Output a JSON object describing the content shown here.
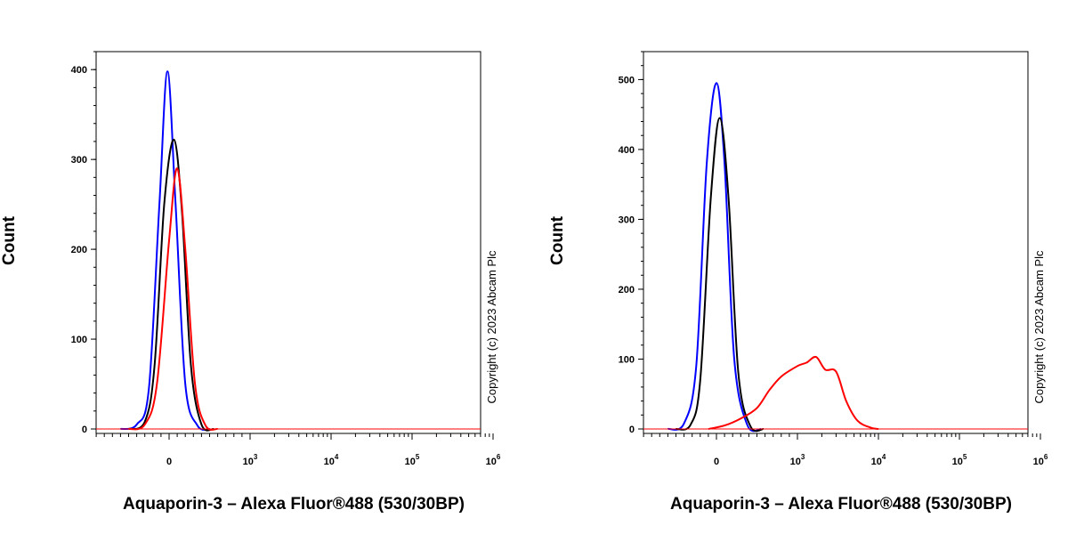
{
  "chart_data": [
    {
      "type": "line",
      "ylabel": "Count",
      "xlabel": "Aquaporin-3 – Alexa Fluor®488 (530/30BP)",
      "copyright": "Copyright (c) 2023 Abcam Plc",
      "ylim": [
        0,
        420
      ],
      "yticks": [
        "0",
        "100",
        "200",
        "300",
        "400"
      ],
      "xscale": "biexponential",
      "xticks": [
        {
          "base": "0",
          "exp": ""
        },
        {
          "base": "10",
          "exp": "3"
        },
        {
          "base": "10",
          "exp": "4"
        },
        {
          "base": "10",
          "exp": "5"
        },
        {
          "base": "10",
          "exp": "6"
        }
      ],
      "series": [
        {
          "color": "#0000ff",
          "points": [
            [
              -600,
              0
            ],
            [
              -400,
              5
            ],
            [
              -250,
              45
            ],
            [
              -120,
              250
            ],
            [
              -20,
              398
            ],
            [
              80,
              250
            ],
            [
              200,
              50
            ],
            [
              350,
              4
            ],
            [
              500,
              0
            ]
          ]
        },
        {
          "color": "#000000",
          "points": [
            [
              -500,
              0
            ],
            [
              -300,
              8
            ],
            [
              -180,
              70
            ],
            [
              -60,
              250
            ],
            [
              60,
              322
            ],
            [
              160,
              240
            ],
            [
              270,
              70
            ],
            [
              400,
              5
            ],
            [
              550,
              0
            ]
          ]
        },
        {
          "color": "#ff0000",
          "points": [
            [
              -500,
              0
            ],
            [
              -300,
              5
            ],
            [
              -150,
              50
            ],
            [
              0,
              210
            ],
            [
              100,
              290
            ],
            [
              200,
              200
            ],
            [
              320,
              50
            ],
            [
              450,
              4
            ],
            [
              600,
              0
            ]
          ]
        }
      ]
    },
    {
      "type": "line",
      "ylabel": "Count",
      "xlabel": "Aquaporin-3 – Alexa Fluor®488 (530/30BP)",
      "copyright": "Copyright (c) 2023 Abcam Plc",
      "ylim": [
        0,
        540
      ],
      "yticks": [
        "0",
        "100",
        "200",
        "300",
        "400",
        "500"
      ],
      "xscale": "biexponential",
      "xticks": [
        {
          "base": "0",
          "exp": ""
        },
        {
          "base": "10",
          "exp": "3"
        },
        {
          "base": "10",
          "exp": "4"
        },
        {
          "base": "10",
          "exp": "5"
        },
        {
          "base": "10",
          "exp": "6"
        }
      ],
      "series": [
        {
          "color": "#0000ff",
          "points": [
            [
              -600,
              0
            ],
            [
              -400,
              8
            ],
            [
              -250,
              90
            ],
            [
              -120,
              380
            ],
            [
              0,
              495
            ],
            [
              100,
              380
            ],
            [
              220,
              100
            ],
            [
              380,
              6
            ],
            [
              550,
              0
            ]
          ]
        },
        {
          "color": "#000000",
          "points": [
            [
              -500,
              0
            ],
            [
              -320,
              6
            ],
            [
              -200,
              70
            ],
            [
              -70,
              330
            ],
            [
              40,
              445
            ],
            [
              150,
              330
            ],
            [
              270,
              80
            ],
            [
              420,
              4
            ],
            [
              580,
              0
            ]
          ]
        },
        {
          "color": "#ff0000",
          "points": [
            [
              -100,
              0
            ],
            [
              100,
              5
            ],
            [
              300,
              15
            ],
            [
              500,
              30
            ],
            [
              650,
              55
            ],
            [
              800,
              75
            ],
            [
              1000,
              90
            ],
            [
              1300,
              95
            ],
            [
              1700,
              103
            ],
            [
              2200,
              85
            ],
            [
              3000,
              82
            ],
            [
              4000,
              40
            ],
            [
              5500,
              12
            ],
            [
              8000,
              2
            ],
            [
              10000,
              0
            ]
          ]
        }
      ]
    }
  ]
}
